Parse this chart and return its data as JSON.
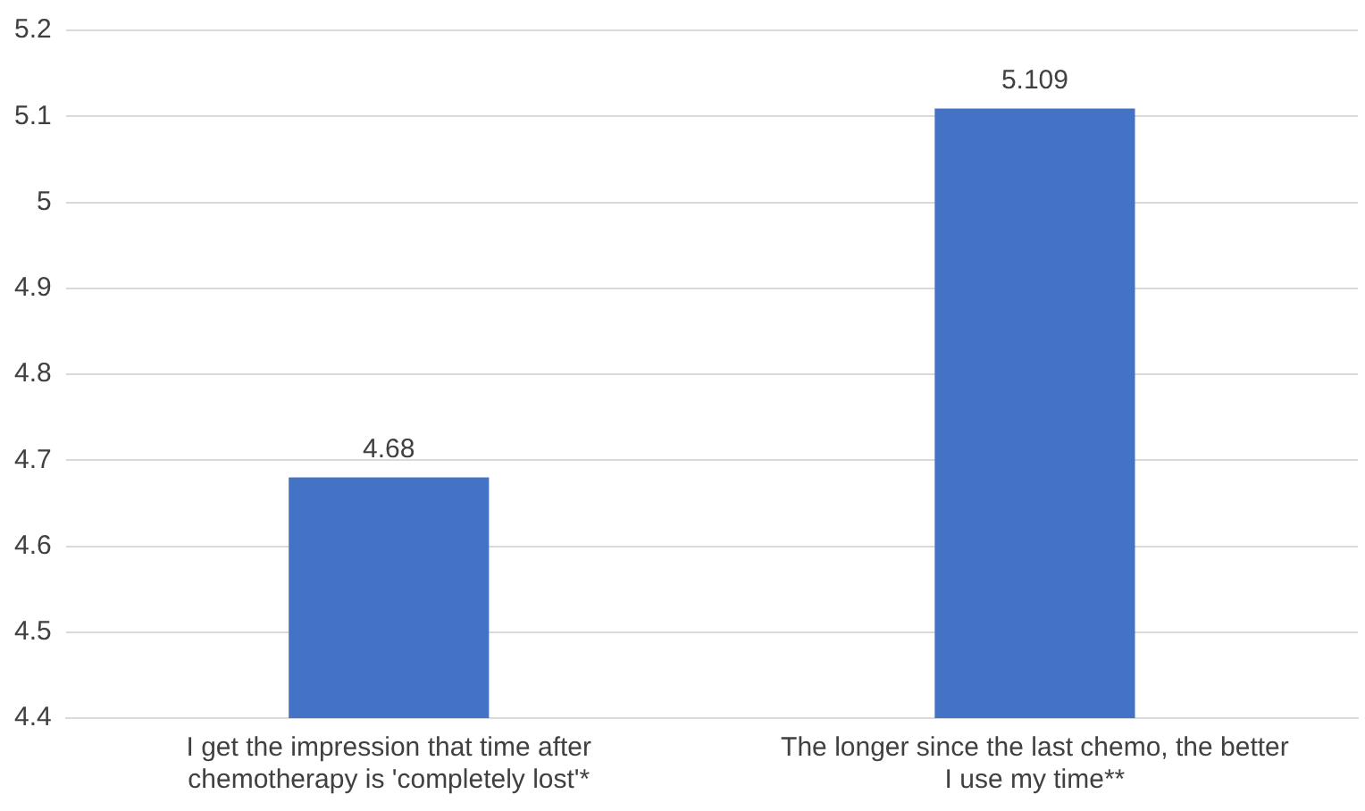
{
  "chart_data": {
    "type": "bar",
    "categories": [
      "I get the impression that time after chemotherapy is 'completely lost'*",
      "The longer since the last chemo, the better I use my time**"
    ],
    "values": [
      4.68,
      5.109
    ],
    "color": "#4472c4",
    "ylim": [
      4.4,
      5.2
    ],
    "yticks": [
      4.4,
      4.5,
      4.6,
      4.7,
      4.8,
      4.9,
      5,
      5.1,
      5.2
    ],
    "grid": "y",
    "legend": false,
    "data_labels": true
  }
}
